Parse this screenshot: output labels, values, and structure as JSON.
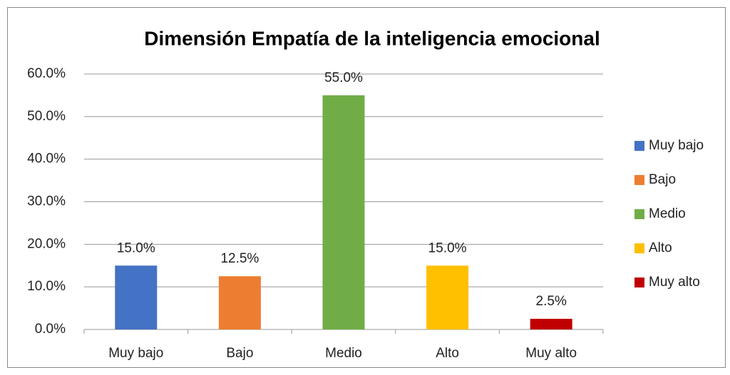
{
  "chart_data": {
    "type": "bar",
    "title": "Dimensión Empatía de la inteligencia emocional",
    "categories": [
      "Muy bajo",
      "Bajo",
      "Medio",
      "Alto",
      "Muy alto"
    ],
    "values": [
      15,
      12.5,
      55,
      15,
      2.5
    ],
    "value_labels": [
      "15.0%",
      "12.5%",
      "55.0%",
      "15.0%",
      "2.5%"
    ],
    "colors": [
      "#4472c4",
      "#ed7d31",
      "#70ad47",
      "#ffc000",
      "#c00000"
    ],
    "ylim": [
      0,
      60
    ],
    "yticks": [
      {
        "value": 0,
        "label": "0.0%"
      },
      {
        "value": 10,
        "label": "10.0%"
      },
      {
        "value": 20,
        "label": "20.0%"
      },
      {
        "value": 30,
        "label": "30.0%"
      },
      {
        "value": 40,
        "label": "40.0%"
      },
      {
        "value": 50,
        "label": "50.0%"
      },
      {
        "value": 60,
        "label": "60.0%"
      }
    ],
    "grid": true,
    "legend": "right"
  }
}
